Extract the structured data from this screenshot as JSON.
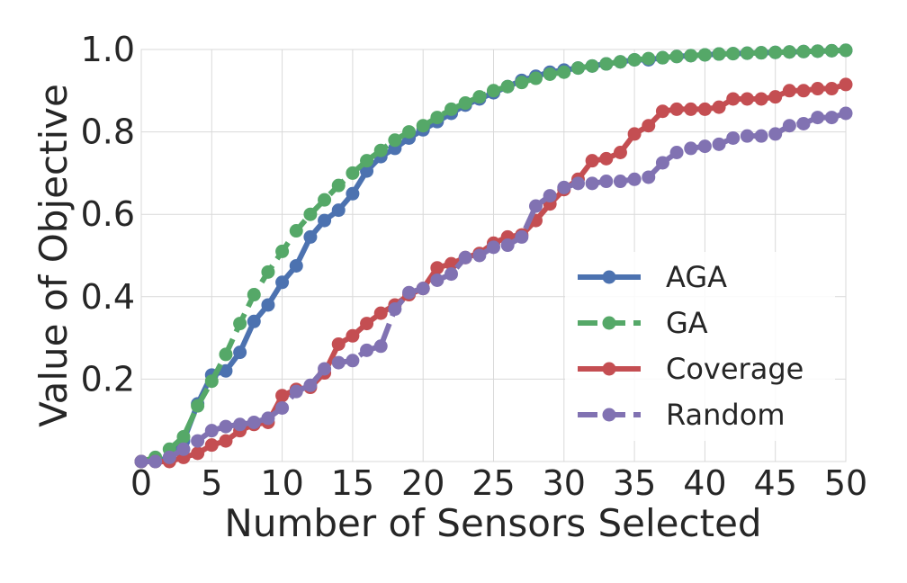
{
  "chart_data": {
    "type": "line",
    "title": "",
    "xlabel": "Number of Sensors Selected",
    "ylabel": "Value of Objective",
    "xlim": [
      0,
      50
    ],
    "ylim": [
      0,
      1.0
    ],
    "xticks": [
      "0",
      "5",
      "10",
      "15",
      "20",
      "25",
      "30",
      "35",
      "40",
      "45",
      "50"
    ],
    "yticks": [
      "0.2",
      "0.4",
      "0.6",
      "0.8",
      "1.0"
    ],
    "ytick_values": [
      0.2,
      0.4,
      0.6,
      0.8,
      1.0
    ],
    "grid": true,
    "legend_position": "lower-right",
    "x": [
      0,
      1,
      2,
      3,
      4,
      5,
      6,
      7,
      8,
      9,
      10,
      11,
      12,
      13,
      14,
      15,
      16,
      17,
      18,
      19,
      20,
      21,
      22,
      23,
      24,
      25,
      26,
      27,
      28,
      29,
      30,
      31,
      32,
      33,
      34,
      35,
      36,
      37,
      38,
      39,
      40,
      41,
      42,
      43,
      44,
      45,
      46,
      47,
      48,
      49,
      50
    ],
    "series": [
      {
        "name": "AGA",
        "color": "#4c72b0",
        "dash": "solid",
        "values": [
          0.0,
          0.0,
          0.01,
          0.05,
          0.14,
          0.21,
          0.22,
          0.265,
          0.34,
          0.38,
          0.435,
          0.475,
          0.545,
          0.585,
          0.61,
          0.65,
          0.705,
          0.74,
          0.76,
          0.785,
          0.805,
          0.825,
          0.845,
          0.865,
          0.88,
          0.895,
          0.91,
          0.925,
          0.935,
          0.945,
          0.95,
          0.955,
          0.96,
          0.965,
          0.97,
          0.975,
          0.975,
          0.98,
          0.983,
          0.985,
          0.987,
          0.989,
          0.99,
          0.991,
          0.992,
          0.993,
          0.994,
          0.995,
          0.996,
          0.997,
          0.998
        ]
      },
      {
        "name": "GA",
        "color": "#55a868",
        "dash": "dashed",
        "values": [
          0.0,
          0.01,
          0.03,
          0.06,
          0.135,
          0.195,
          0.26,
          0.335,
          0.405,
          0.46,
          0.51,
          0.56,
          0.6,
          0.635,
          0.67,
          0.7,
          0.73,
          0.755,
          0.78,
          0.8,
          0.815,
          0.835,
          0.855,
          0.87,
          0.885,
          0.9,
          0.91,
          0.92,
          0.93,
          0.94,
          0.945,
          0.955,
          0.96,
          0.965,
          0.97,
          0.975,
          0.978,
          0.98,
          0.983,
          0.985,
          0.987,
          0.989,
          0.99,
          0.991,
          0.992,
          0.993,
          0.994,
          0.995,
          0.996,
          0.997,
          0.998
        ]
      },
      {
        "name": "Coverage",
        "color": "#c44e52",
        "dash": "solid",
        "values": [
          0.0,
          0.0,
          0.0,
          0.01,
          0.02,
          0.04,
          0.05,
          0.075,
          0.09,
          0.095,
          0.16,
          0.175,
          0.18,
          0.215,
          0.285,
          0.305,
          0.335,
          0.36,
          0.38,
          0.405,
          0.42,
          0.47,
          0.48,
          0.495,
          0.505,
          0.53,
          0.545,
          0.55,
          0.585,
          0.625,
          0.66,
          0.685,
          0.73,
          0.735,
          0.75,
          0.795,
          0.815,
          0.85,
          0.855,
          0.855,
          0.855,
          0.86,
          0.88,
          0.88,
          0.88,
          0.885,
          0.9,
          0.9,
          0.905,
          0.905,
          0.915
        ]
      },
      {
        "name": "Random",
        "color": "#8172b2",
        "dash": "dashed",
        "values": [
          0.0,
          0.0,
          0.01,
          0.03,
          0.05,
          0.075,
          0.085,
          0.09,
          0.095,
          0.105,
          0.13,
          0.17,
          0.185,
          0.225,
          0.24,
          0.245,
          0.27,
          0.28,
          0.37,
          0.41,
          0.42,
          0.44,
          0.455,
          0.495,
          0.5,
          0.52,
          0.525,
          0.545,
          0.62,
          0.645,
          0.665,
          0.675,
          0.675,
          0.68,
          0.68,
          0.685,
          0.69,
          0.725,
          0.75,
          0.76,
          0.765,
          0.77,
          0.785,
          0.79,
          0.79,
          0.795,
          0.815,
          0.82,
          0.835,
          0.835,
          0.845
        ]
      }
    ]
  }
}
